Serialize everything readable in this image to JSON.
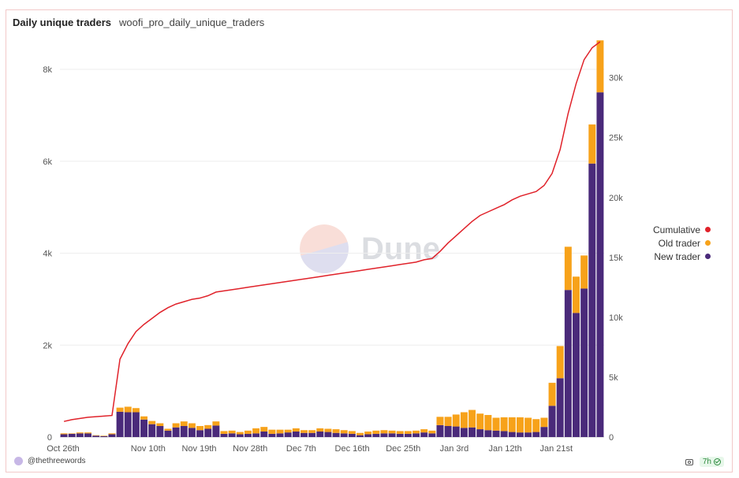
{
  "header": {
    "title": "Daily unique traders",
    "query_name": "woofi_pro_daily_unique_traders"
  },
  "watermark": {
    "text": "Dune"
  },
  "footer": {
    "author": "@thethreewords",
    "age": "7h"
  },
  "colors": {
    "new_trader": "#4a2a7a",
    "old_trader": "#f7a21a",
    "cumulative": "#e0222a",
    "grid": "#eeeeee"
  },
  "chart_data": {
    "type": "bar",
    "stacked": true,
    "title": "Daily unique traders",
    "x_tick_labels": [
      "Oct 26th",
      "Nov 10th",
      "Nov 19th",
      "Nov 28th",
      "Dec 7th",
      "Dec 16th",
      "Dec 25th",
      "Jan 3rd",
      "Jan 12th",
      "Jan 21st"
    ],
    "left_axis": {
      "ticks": [
        0,
        2000,
        4000,
        6000,
        8000
      ],
      "tick_labels": [
        "0",
        "2k",
        "4k",
        "6k",
        "8k"
      ],
      "ylim": [
        0,
        8600
      ]
    },
    "right_axis": {
      "ticks": [
        0,
        5000,
        10000,
        15000,
        20000,
        25000,
        30000
      ],
      "tick_labels": [
        "0",
        "5k",
        "10k",
        "15k",
        "20k",
        "25k",
        "30k"
      ],
      "ylim": [
        0,
        33000
      ]
    },
    "legend": {
      "position": "right",
      "entries": [
        "Cumulative",
        "Old trader",
        "New trader"
      ]
    },
    "series": [
      {
        "name": "New trader",
        "axis": "left",
        "kind": "bar",
        "values": [
          60,
          70,
          80,
          80,
          30,
          20,
          60,
          550,
          540,
          540,
          380,
          280,
          240,
          140,
          210,
          240,
          200,
          150,
          180,
          250,
          70,
          80,
          60,
          70,
          80,
          120,
          70,
          80,
          100,
          120,
          90,
          90,
          120,
          110,
          90,
          80,
          70,
          40,
          60,
          70,
          80,
          80,
          70,
          70,
          80,
          100,
          80,
          260,
          240,
          230,
          200,
          210,
          170,
          150,
          140,
          130,
          110,
          100,
          100,
          110,
          220,
          680,
          1280,
          3200,
          2700,
          3230,
          5950,
          7500
        ]
      },
      {
        "name": "Old trader",
        "axis": "left",
        "kind": "bar",
        "values": [
          20,
          10,
          20,
          20,
          10,
          10,
          20,
          90,
          120,
          90,
          70,
          70,
          60,
          40,
          90,
          100,
          100,
          90,
          80,
          90,
          60,
          60,
          50,
          70,
          110,
          100,
          90,
          80,
          60,
          70,
          60,
          60,
          70,
          70,
          80,
          70,
          60,
          50,
          60,
          70,
          70,
          60,
          60,
          60,
          60,
          70,
          60,
          180,
          200,
          260,
          340,
          380,
          340,
          330,
          280,
          300,
          320,
          330,
          320,
          280,
          200,
          500,
          700,
          940,
          790,
          720,
          850,
          1130
        ]
      },
      {
        "name": "Cumulative",
        "axis": "right",
        "kind": "line",
        "values": [
          1300,
          1450,
          1550,
          1650,
          1700,
          1750,
          1800,
          6500,
          7800,
          8800,
          9400,
          9900,
          10400,
          10800,
          11100,
          11300,
          11500,
          11600,
          11800,
          12100,
          12200,
          12300,
          12400,
          12500,
          12600,
          12700,
          12800,
          12900,
          13000,
          13100,
          13200,
          13300,
          13400,
          13500,
          13600,
          13700,
          13800,
          13900,
          14000,
          14100,
          14200,
          14300,
          14400,
          14500,
          14600,
          14800,
          14900,
          15500,
          16200,
          16800,
          17400,
          18000,
          18500,
          18800,
          19100,
          19400,
          19800,
          20100,
          20300,
          20500,
          21000,
          22000,
          24000,
          27000,
          29500,
          31500,
          32500,
          33000
        ]
      }
    ]
  }
}
